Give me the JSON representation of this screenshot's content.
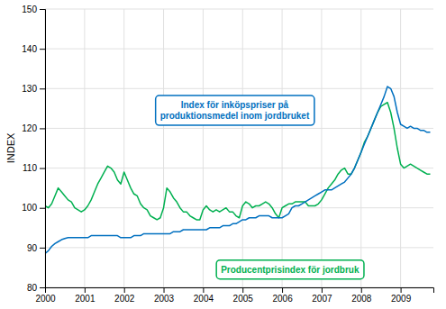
{
  "chart_data": {
    "type": "line",
    "ylabel": "INDEX",
    "xlim": [
      2000.0,
      2009.83
    ],
    "ylim": [
      80,
      150
    ],
    "xticks": [
      2000,
      2001,
      2002,
      2003,
      2004,
      2005,
      2006,
      2007,
      2008,
      2009
    ],
    "yticks": [
      80,
      90,
      100,
      110,
      120,
      130,
      140,
      150
    ],
    "grid": true,
    "x": [
      2000.0,
      2000.083,
      2000.167,
      2000.25,
      2000.333,
      2000.417,
      2000.5,
      2000.583,
      2000.667,
      2000.75,
      2000.833,
      2000.917,
      2001.0,
      2001.083,
      2001.167,
      2001.25,
      2001.333,
      2001.417,
      2001.5,
      2001.583,
      2001.667,
      2001.75,
      2001.833,
      2001.917,
      2002.0,
      2002.083,
      2002.167,
      2002.25,
      2002.333,
      2002.417,
      2002.5,
      2002.583,
      2002.667,
      2002.75,
      2002.833,
      2002.917,
      2003.0,
      2003.083,
      2003.167,
      2003.25,
      2003.333,
      2003.417,
      2003.5,
      2003.583,
      2003.667,
      2003.75,
      2003.833,
      2003.917,
      2004.0,
      2004.083,
      2004.167,
      2004.25,
      2004.333,
      2004.417,
      2004.5,
      2004.583,
      2004.667,
      2004.75,
      2004.833,
      2004.917,
      2005.0,
      2005.083,
      2005.167,
      2005.25,
      2005.333,
      2005.417,
      2005.5,
      2005.583,
      2005.667,
      2005.75,
      2005.833,
      2005.917,
      2006.0,
      2006.083,
      2006.167,
      2006.25,
      2006.333,
      2006.417,
      2006.5,
      2006.583,
      2006.667,
      2006.75,
      2006.833,
      2006.917,
      2007.0,
      2007.083,
      2007.167,
      2007.25,
      2007.333,
      2007.417,
      2007.5,
      2007.583,
      2007.667,
      2007.75,
      2007.833,
      2007.917,
      2008.0,
      2008.083,
      2008.167,
      2008.25,
      2008.333,
      2008.417,
      2008.5,
      2008.583,
      2008.667,
      2008.75,
      2008.833,
      2008.917,
      2009.0,
      2009.083,
      2009.167,
      2009.25,
      2009.333,
      2009.417,
      2009.5,
      2009.583,
      2009.667,
      2009.75
    ],
    "series": [
      {
        "color": "#00B050",
        "values": [
          100.5,
          100.0,
          101.0,
          103.0,
          105.0,
          104.0,
          103.0,
          102.0,
          101.5,
          100.0,
          99.5,
          99.0,
          99.5,
          100.5,
          102.0,
          104.0,
          106.0,
          107.5,
          109.0,
          110.5,
          110.0,
          109.0,
          107.0,
          106.0,
          109.0,
          107.0,
          105.0,
          103.5,
          103.0,
          101.0,
          100.0,
          99.5,
          98.0,
          97.5,
          97.0,
          97.5,
          100.0,
          105.0,
          104.0,
          102.5,
          101.5,
          100.0,
          99.0,
          99.0,
          98.0,
          97.5,
          97.0,
          97.0,
          99.5,
          100.5,
          99.5,
          99.0,
          99.5,
          99.0,
          99.5,
          100.0,
          99.0,
          99.0,
          98.0,
          97.5,
          100.5,
          101.5,
          101.0,
          100.0,
          100.5,
          100.5,
          101.0,
          101.5,
          101.0,
          100.0,
          98.5,
          97.5,
          100.0,
          100.5,
          101.0,
          101.0,
          101.5,
          101.5,
          101.5,
          101.5,
          100.5,
          100.5,
          100.5,
          101.0,
          102.0,
          103.5,
          105.0,
          106.0,
          107.0,
          108.5,
          109.5,
          110.0,
          108.5,
          108.5,
          110.0,
          112.0,
          114.0,
          116.5,
          118.0,
          120.0,
          122.0,
          124.0,
          125.5,
          126.0,
          126.5,
          124.0,
          120.0,
          115.0,
          111.0,
          110.0,
          110.5,
          111.0,
          110.5,
          110.0,
          109.5,
          109.0,
          108.5,
          108.5
        ]
      },
      {
        "color": "#0070C0",
        "values": [
          88.5,
          89.2,
          90.3,
          91.0,
          91.5,
          92.0,
          92.3,
          92.5,
          92.5,
          92.5,
          92.5,
          92.5,
          92.5,
          92.5,
          93.0,
          93.0,
          93.0,
          93.0,
          93.0,
          93.0,
          93.0,
          93.0,
          93.0,
          92.5,
          92.5,
          92.5,
          92.5,
          93.0,
          93.0,
          93.0,
          93.5,
          93.5,
          93.5,
          93.5,
          93.5,
          93.5,
          93.5,
          93.5,
          93.5,
          94.0,
          94.0,
          94.0,
          94.5,
          94.5,
          94.5,
          94.5,
          94.5,
          94.5,
          94.5,
          94.5,
          95.0,
          95.0,
          95.0,
          95.0,
          95.5,
          95.5,
          95.5,
          96.0,
          96.0,
          96.5,
          97.0,
          97.0,
          97.5,
          97.5,
          97.5,
          98.0,
          98.0,
          98.0,
          98.0,
          97.5,
          97.5,
          97.5,
          97.5,
          98.0,
          98.5,
          100.0,
          100.5,
          100.5,
          101.0,
          101.5,
          102.0,
          102.5,
          103.0,
          103.5,
          104.0,
          104.5,
          104.5,
          104.5,
          105.0,
          105.5,
          106.0,
          106.5,
          107.5,
          108.5,
          110.0,
          112.0,
          114.0,
          116.0,
          118.0,
          120.0,
          122.0,
          124.0,
          126.0,
          128.0,
          130.5,
          130.0,
          128.0,
          124.0,
          121.0,
          120.5,
          120.0,
          120.5,
          120.0,
          120.0,
          119.5,
          119.5,
          119.0,
          119.0
        ]
      }
    ],
    "annotations": [
      {
        "text": "Index för inköpspriser på\nproduktionsmedel inom jordbruket",
        "x": 2004.8,
        "y": 124.5,
        "color": "#0070C0"
      },
      {
        "text": "Producentprisindex för jordbruk",
        "x": 2006.2,
        "y": 84.5,
        "color": "#00B050"
      }
    ]
  }
}
